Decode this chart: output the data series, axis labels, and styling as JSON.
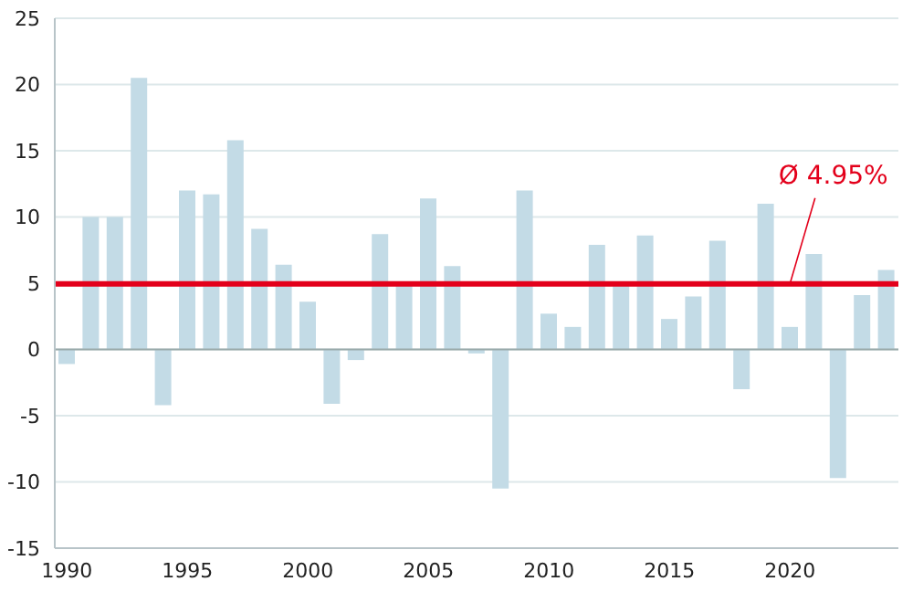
{
  "chart_data": {
    "type": "bar",
    "categories": [
      "1990",
      null,
      null,
      null,
      null,
      "1995",
      null,
      null,
      null,
      null,
      "2000",
      null,
      null,
      null,
      null,
      "2005",
      null,
      null,
      null,
      null,
      "2010",
      null,
      null,
      null,
      null,
      "2015",
      null,
      null,
      null,
      null,
      "2020",
      null,
      null,
      null,
      null
    ],
    "values": [
      -1.1,
      10,
      10,
      20.5,
      -4.2,
      12,
      11.7,
      15.8,
      9.1,
      6.4,
      3.6,
      -4.1,
      -0.8,
      8.7,
      4.9,
      11.4,
      6.3,
      -0.3,
      -10.5,
      12,
      2.7,
      1.7,
      7.9,
      4.9,
      8.6,
      2.3,
      4.0,
      8.2,
      -3.0,
      11.0,
      1.7,
      7.2,
      -9.7,
      4.1,
      6.0
    ],
    "color": "#c3dbe6",
    "ylim": [
      -15,
      25
    ],
    "yticks": [
      -15,
      -10,
      -5,
      0,
      5,
      10,
      15,
      20,
      25
    ],
    "grid": "y",
    "ref_lines": [
      {
        "axis": "y",
        "value": 4.95,
        "label": "Ø 4.95%",
        "color": "#e3001b"
      }
    ]
  }
}
